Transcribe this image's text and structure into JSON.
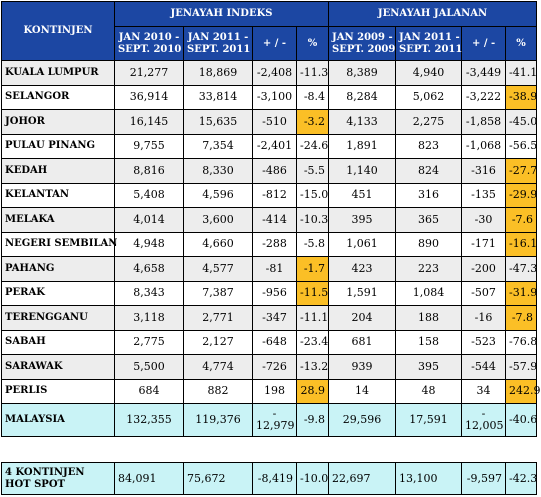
{
  "header": {
    "kontinjen": "KONTINJEN",
    "group1": "JENAYAH INDEKS",
    "group2": "JENAYAH JALANAN",
    "g1_col1": [
      "JAN 2010 -",
      "SEPT. 2010"
    ],
    "g1_col2": [
      "JAN 2011 -",
      "SEPT. 2011"
    ],
    "g2_col1": [
      "JAN 2009 -",
      "SEPT. 2009"
    ],
    "g2_col2": [
      "JAN 2011 -",
      "SEPT. 2011"
    ],
    "plusminus": "+ / -",
    "percent": "%"
  },
  "rows": [
    {
      "name": "KUALA LUMPUR",
      "a": "21,277",
      "b": "18,869",
      "c": "-2,408",
      "d": "-11.3",
      "e": "8,389",
      "f": "4,940",
      "g": "-3,449",
      "h": "-41.1"
    },
    {
      "name": "SELANGOR",
      "a": "36,914",
      "b": "33,814",
      "c": "-3,100",
      "d": "-8.4",
      "e": "8,284",
      "f": "5,062",
      "g": "-3,222",
      "h": "-38.9"
    },
    {
      "name": "JOHOR",
      "a": "16,145",
      "b": "15,635",
      "c": "-510",
      "d": "-3.2",
      "e": "4,133",
      "f": "2,275",
      "g": "-1,858",
      "h": "-45.0"
    },
    {
      "name": "PULAU PINANG",
      "a": "9,755",
      "b": "7,354",
      "c": "-2,401",
      "d": "-24.6",
      "e": "1,891",
      "f": "823",
      "g": "-1,068",
      "h": "-56.5"
    },
    {
      "name": "KEDAH",
      "a": "8,816",
      "b": "8,330",
      "c": "-486",
      "d": "-5.5",
      "e": "1,140",
      "f": "824",
      "g": "-316",
      "h": "-27.7"
    },
    {
      "name": "KELANTAN",
      "a": "5,408",
      "b": "4,596",
      "c": "-812",
      "d": "-15.0",
      "e": "451",
      "f": "316",
      "g": "-135",
      "h": "-29.9"
    },
    {
      "name": "MELAKA",
      "a": "4,014",
      "b": "3,600",
      "c": "-414",
      "d": "-10.3",
      "e": "395",
      "f": "365",
      "g": "-30",
      "h": "-7.6"
    },
    {
      "name": "NEGERI SEMBILAN",
      "a": "4,948",
      "b": "4,660",
      "c": "-288",
      "d": "-5.8",
      "e": "1,061",
      "f": "890",
      "g": "-171",
      "h": "-16.1"
    },
    {
      "name": "PAHANG",
      "a": "4,658",
      "b": "4,577",
      "c": "-81",
      "d": "-1.7",
      "e": "423",
      "f": "223",
      "g": "-200",
      "h": "-47.3"
    },
    {
      "name": "PERAK",
      "a": "8,343",
      "b": "7,387",
      "c": "-956",
      "d": "-11.5",
      "e": "1,591",
      "f": "1,084",
      "g": "-507",
      "h": "-31.9"
    },
    {
      "name": "TERENGGANU",
      "a": "3,118",
      "b": "2,771",
      "c": "-347",
      "d": "-11.1",
      "e": "204",
      "f": "188",
      "g": "-16",
      "h": "-7.8"
    },
    {
      "name": "SABAH",
      "a": "2,775",
      "b": "2,127",
      "c": "-648",
      "d": "-23.4",
      "e": "681",
      "f": "158",
      "g": "-523",
      "h": "-76.8"
    },
    {
      "name": "SARAWAK",
      "a": "5,500",
      "b": "4,774",
      "c": "-726",
      "d": "-13.2",
      "e": "939",
      "f": "395",
      "g": "-544",
      "h": "-57.9"
    },
    {
      "name": "PERLIS",
      "a": "684",
      "b": "882",
      "c": "198",
      "d": "28.9",
      "e": "14",
      "f": "48",
      "g": "34",
      "h": "242.9"
    }
  ],
  "malaysia": {
    "name": "MALAYSIA",
    "a": "132,355",
    "b": "119,376",
    "c": "-",
    "c2": "12,979",
    "d": "-9.8",
    "e": "29,596",
    "f": "17,591",
    "g": "-",
    "g2": "12,005",
    "h": "-40.6"
  },
  "hotspot": {
    "name1": "4 KONTINJEN",
    "name2": "HOT SPOT",
    "a": "84,091",
    "b": "75,672",
    "c": "-8,419",
    "d": "-10.0",
    "e": "22,697",
    "f": "13,100",
    "g": "-9,597",
    "h": "-42.3"
  },
  "colors": {
    "header_bg": "#1c47a3",
    "highlight": "#fbbf26",
    "total_bg": "#c9f3f6",
    "shade": "#ededed"
  }
}
